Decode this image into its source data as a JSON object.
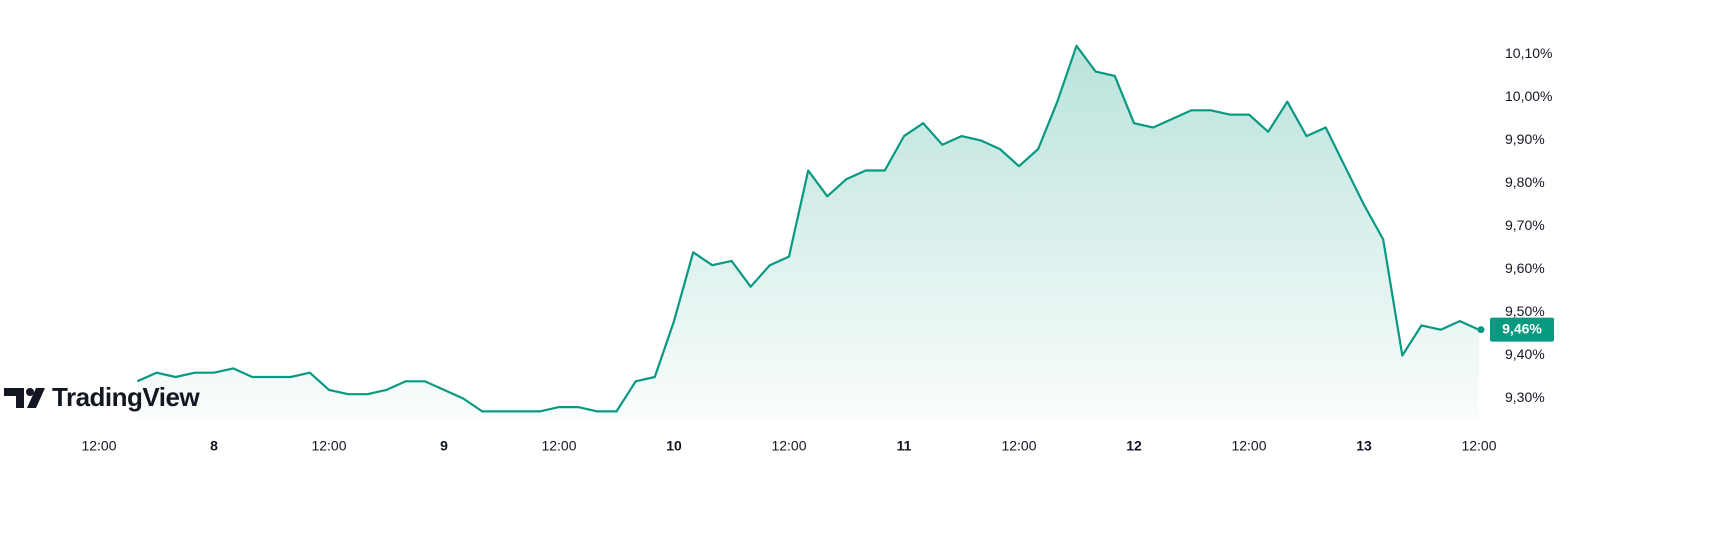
{
  "brand": "TradingView",
  "chart_data": {
    "type": "line",
    "color": "#089981",
    "categories": [
      "12:00",
      null,
      null,
      null,
      null,
      null,
      "8",
      null,
      null,
      null,
      null,
      null,
      "12:00",
      null,
      null,
      null,
      null,
      null,
      "9",
      null,
      null,
      null,
      null,
      null,
      "12:00",
      null,
      null,
      null,
      null,
      null,
      "10",
      null,
      null,
      null,
      null,
      null,
      "12:00",
      null,
      null,
      null,
      null,
      null,
      "11",
      null,
      null,
      null,
      null,
      null,
      "12:00",
      null,
      null,
      null,
      null,
      null,
      "12",
      null,
      null,
      null,
      null,
      null,
      "12:00",
      null,
      null,
      null,
      null,
      null,
      "13",
      null,
      null,
      null,
      null,
      null,
      "12:00"
    ],
    "values": [
      null,
      null,
      9.34,
      9.36,
      9.35,
      9.36,
      9.36,
      9.37,
      9.35,
      9.35,
      9.35,
      9.36,
      9.32,
      9.31,
      9.31,
      9.32,
      9.34,
      9.34,
      9.32,
      9.3,
      9.27,
      9.27,
      9.27,
      9.27,
      9.28,
      9.28,
      9.27,
      9.27,
      9.34,
      9.35,
      9.48,
      9.64,
      9.61,
      9.62,
      9.56,
      9.61,
      9.63,
      9.83,
      9.77,
      9.81,
      9.83,
      9.83,
      9.91,
      9.94,
      9.89,
      9.91,
      9.9,
      9.88,
      9.84,
      9.88,
      9.99,
      10.12,
      10.06,
      10.05,
      9.94,
      9.93,
      9.95,
      9.97,
      9.97,
      9.96,
      9.96,
      9.92,
      9.99,
      9.91,
      9.93,
      9.84,
      9.75,
      9.67,
      9.4,
      9.47,
      9.46,
      9.48,
      9.46
    ],
    "last_value_label": "9,46%",
    "ylim": [
      9.25,
      10.18
    ],
    "yticks": [
      {
        "value": 9.3,
        "label": "9,30%"
      },
      {
        "value": 9.4,
        "label": "9,40%"
      },
      {
        "value": 9.5,
        "label": "9,50%"
      },
      {
        "value": 9.6,
        "label": "9,60%"
      },
      {
        "value": 9.7,
        "label": "9,70%"
      },
      {
        "value": 9.8,
        "label": "9,80%"
      },
      {
        "value": 9.9,
        "label": "9,90%"
      },
      {
        "value": 10.0,
        "label": "10,00%"
      },
      {
        "value": 10.1,
        "label": "10,10%"
      }
    ],
    "grid": false
  }
}
